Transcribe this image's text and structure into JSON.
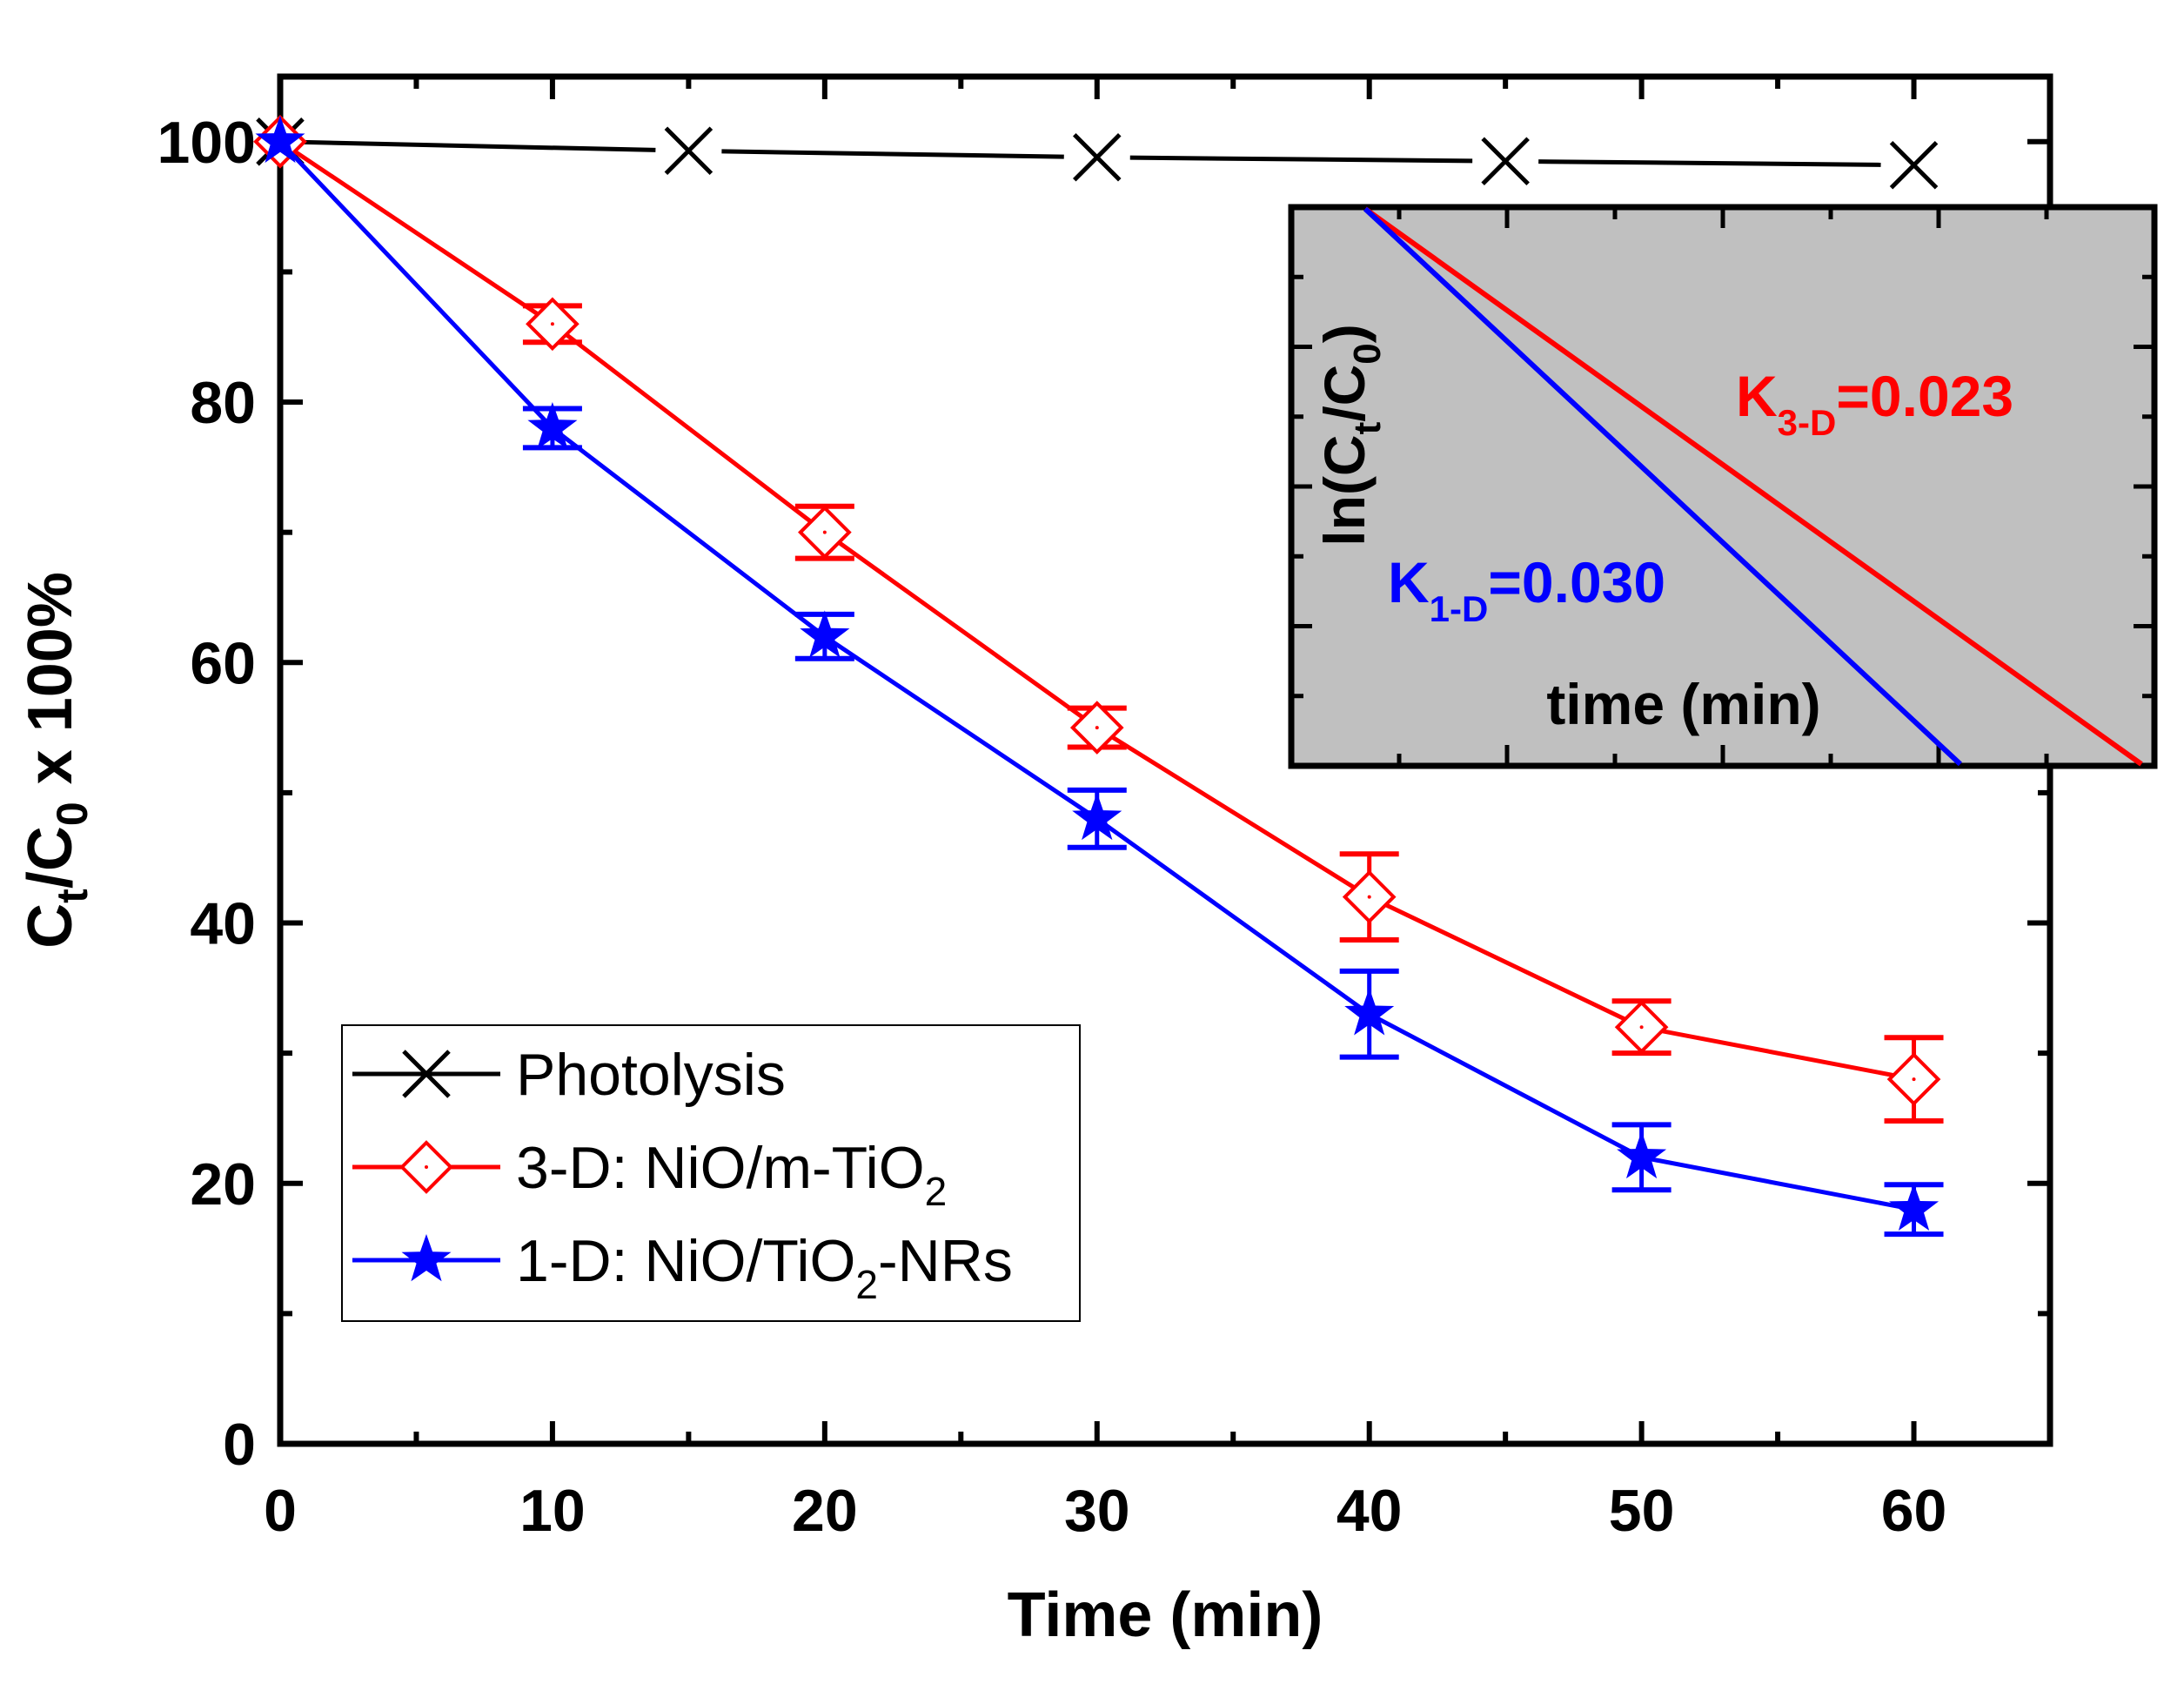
{
  "chart_data": {
    "type": "line",
    "title": "",
    "xlabel": "Time (min)",
    "ylabel": {
      "base": "C",
      "sub1": "t",
      "mid": "/C",
      "sub2": "0",
      "tail": " x 100%"
    },
    "xlim": [
      0,
      65
    ],
    "ylim": [
      0,
      105
    ],
    "xticks": [
      0,
      10,
      20,
      30,
      40,
      50,
      60
    ],
    "yticks": [
      0,
      20,
      40,
      60,
      80,
      100
    ],
    "xtick_labels": [
      "0",
      "10",
      "20",
      "30",
      "40",
      "50",
      "60"
    ],
    "ytick_labels": [
      "0",
      "20",
      "40",
      "60",
      "80",
      "100"
    ],
    "legend_position": "bottom-left",
    "series": [
      {
        "name": "Photolysis",
        "legend": {
          "main": "Photolysis",
          "sub": "",
          "tail": ""
        },
        "color": "#000000",
        "marker": "x",
        "x": [
          0,
          15,
          30,
          45,
          60
        ],
        "y": [
          100,
          99.3,
          98.8,
          98.5,
          98.2
        ],
        "err": [
          0,
          0,
          0,
          0,
          0
        ]
      },
      {
        "name": "3-D: NiO/m-TiO2",
        "legend": {
          "main": "3-D: NiO/m-TiO",
          "sub": "2",
          "tail": ""
        },
        "color": "#ff0000",
        "marker": "diamond-open",
        "x": [
          0,
          10,
          20,
          30,
          40,
          50,
          60
        ],
        "y": [
          100,
          86,
          70,
          55,
          42,
          32,
          28
        ],
        "err": [
          0,
          1.4,
          2.0,
          1.5,
          3.3,
          2.0,
          3.2
        ]
      },
      {
        "name": "1-D: NiO/TiO2-NRs",
        "legend": {
          "main": "1-D: NiO/TiO",
          "sub": "2",
          "tail": "-NRs"
        },
        "color": "#0000ff",
        "marker": "star",
        "x": [
          0,
          10,
          20,
          30,
          40,
          50,
          60
        ],
        "y": [
          100,
          78,
          62,
          48,
          33,
          22,
          18
        ],
        "err": [
          0,
          1.5,
          1.7,
          2.2,
          3.3,
          2.5,
          1.9
        ]
      }
    ],
    "inset": {
      "background": "#c0c0c0",
      "ylabel": {
        "main": "ln(C",
        "sub1": "t",
        "mid": "/C",
        "sub2": "0",
        "tail": ")"
      },
      "xlabel": "time (min)",
      "lines": [
        {
          "name": "3-D",
          "color": "#ff0000",
          "slope": 0.023
        },
        {
          "name": "1-D",
          "color": "#0000ff",
          "slope": 0.03
        }
      ],
      "annotations": [
        {
          "main": "K",
          "sub": "3-D",
          "tail": "=0.023",
          "color": "#ff0000"
        },
        {
          "main": "K",
          "sub": "1-D",
          "tail": "=0.030",
          "color": "#0000ff"
        }
      ]
    }
  }
}
